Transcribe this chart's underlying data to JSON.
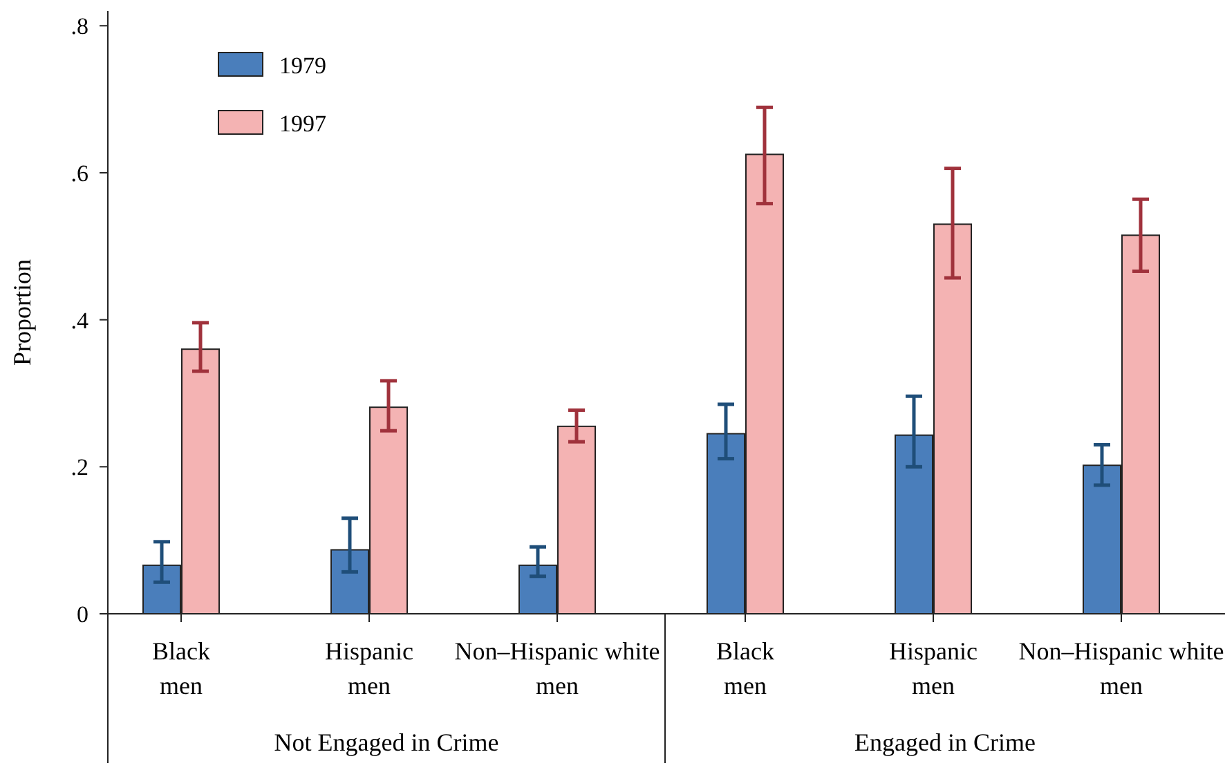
{
  "chart_data": {
    "type": "bar",
    "ylabel": "Proportion",
    "categories": [
      "Black men",
      "Hispanic men",
      "Non–Hispanic white men",
      "Black men",
      "Hispanic men",
      "Non–Hispanic white men"
    ],
    "series": [
      {
        "name": "1979",
        "color": "#4a7ebb",
        "values": [
          0.066,
          0.087,
          0.066,
          0.245,
          0.243,
          0.202
        ],
        "errors": [
          [
            0.043,
            0.098
          ],
          [
            0.057,
            0.13
          ],
          [
            0.051,
            0.091
          ],
          [
            0.211,
            0.285
          ],
          [
            0.2,
            0.296
          ],
          [
            0.175,
            0.23
          ]
        ]
      },
      {
        "name": "1997",
        "color": "#f4b3b3",
        "values": [
          0.36,
          0.281,
          0.255,
          0.625,
          0.53,
          0.515
        ],
        "errors": [
          [
            0.33,
            0.396
          ],
          [
            0.249,
            0.317
          ],
          [
            0.234,
            0.277
          ],
          [
            0.558,
            0.689
          ],
          [
            0.457,
            0.606
          ],
          [
            0.466,
            0.564
          ]
        ]
      }
    ],
    "annotations": [
      "Not Engaged in Crime",
      "Engaged in Crime"
    ],
    "ylim": [
      0,
      0.82
    ],
    "yticks": [
      {
        "value": 0,
        "label": "0"
      },
      {
        "value": 0.2,
        "label": ".2"
      },
      {
        "value": 0.4,
        "label": ".4"
      },
      {
        "value": 0.6,
        "label": ".6"
      },
      {
        "value": 0.8,
        "label": ".8"
      }
    ],
    "legend": "top left"
  }
}
